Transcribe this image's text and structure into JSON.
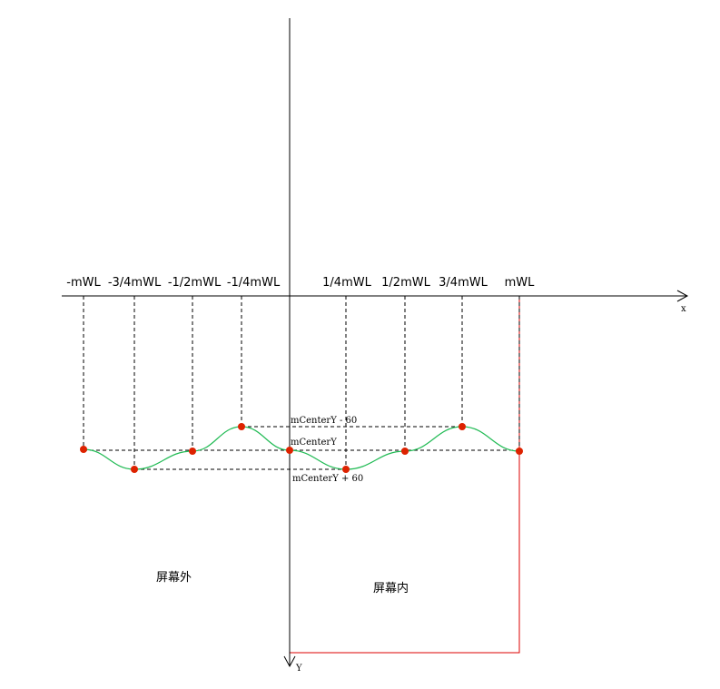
{
  "axes": {
    "x_label": "x",
    "y_label": "Y"
  },
  "x_ticks": [
    "-mWL",
    "-3/4mWL",
    "-1/2mWL",
    "-1/4mWL",
    "1/4mWL",
    "1/2mWL",
    "3/4mWL",
    "mWL"
  ],
  "levels": {
    "top": "mCenterY - 60",
    "center": "mCenterY",
    "bottom": "mCenterY + 60"
  },
  "regions": {
    "outside": "屏幕外",
    "inside": "屏幕内"
  },
  "colors": {
    "axis": "#000000",
    "wave": "#22bb55",
    "point": "#dd2200",
    "screen_border": "#dd0000",
    "dashed": "#000000"
  }
}
